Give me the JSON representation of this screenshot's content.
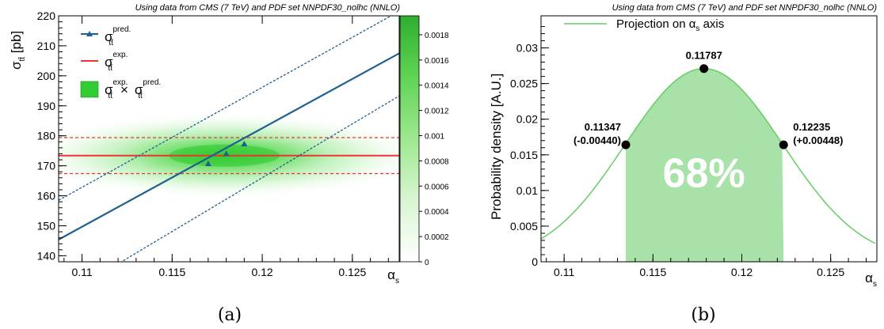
{
  "chart_data": [
    {
      "type": "heatmap",
      "title": "Using data from CMS (7 TeV) and PDF set NNPDF30_nolhc (NNLO)",
      "xlabel": "α_s",
      "ylabel": "σ_tt̄ [pb]",
      "xlim": [
        0.1087,
        0.1276
      ],
      "ylim": [
        138,
        220
      ],
      "xticks": [
        "0.11",
        "0.115",
        "0.12",
        "0.125"
      ],
      "yticks": [
        "140",
        "150",
        "160",
        "170",
        "180",
        "190",
        "200",
        "210",
        "220"
      ],
      "zticks": [
        "0",
        "0.0002",
        "0.0004",
        "0.0006",
        "0.0008",
        "0.001",
        "0.0012",
        "0.0014",
        "0.0016",
        "0.0018"
      ],
      "zlim": [
        0,
        0.00195
      ],
      "prediction": {
        "line": [
          [
            0.1087,
            145.4
          ],
          [
            0.1276,
            207.5
          ]
        ],
        "upper_band": [
          [
            0.1087,
            158.5
          ],
          [
            0.1276,
            221.5
          ]
        ],
        "lower_band": [
          [
            0.1087,
            125.5
          ],
          [
            0.1276,
            193.3
          ]
        ],
        "markers": [
          [
            0.117,
            170.7
          ],
          [
            0.118,
            174.0
          ],
          [
            0.119,
            177.3
          ]
        ]
      },
      "measurement": {
        "central": 173.4,
        "up": 179.4,
        "down": 167.4
      },
      "heatmap_peak": {
        "alpha_s": 0.1179,
        "sigma": 173.4,
        "value": 0.00195
      },
      "legend": {
        "pred": {
          "main": "σ",
          "sub": "tt̄",
          "sup": "pred."
        },
        "exp": {
          "main": "σ",
          "sub": "tt̄",
          "sup": "exp."
        },
        "prod": {
          "a": "σ",
          "a_sub": "tt̄",
          "a_sup": "exp.",
          "op": "×",
          "b": "σ",
          "b_sub": "tt̄",
          "b_sup": "pred."
        }
      },
      "caption": "(a)"
    },
    {
      "type": "area",
      "title": "Using data from CMS (7 TeV) and PDF set NNPDF30_nolhc (NNLO)",
      "xlabel": "α_s",
      "ylabel": "Probability density [A.U.]",
      "xlim": [
        0.1087,
        0.1276
      ],
      "ylim": [
        0,
        0.0345
      ],
      "xticks": [
        "0.11",
        "0.115",
        "0.12",
        "0.125"
      ],
      "yticks": [
        "0",
        "0.005",
        "0.01",
        "0.015",
        "0.02",
        "0.025",
        "0.03"
      ],
      "legend": "Projection on α_s axis",
      "gaussian": {
        "mean": 0.11787,
        "sigma": 0.00444,
        "peak": 0.0271
      },
      "points": [
        {
          "x": 0.11347,
          "y": 0.0164,
          "label": "0.11347",
          "sublabel": "(-0.00440)"
        },
        {
          "x": 0.11787,
          "y": 0.0271,
          "label": "0.11787"
        },
        {
          "x": 0.12235,
          "y": 0.0164,
          "label": "0.12235",
          "sublabel": "(+0.00448)"
        }
      ],
      "band_label": "68%",
      "caption": "(b)"
    }
  ],
  "colors": {
    "pred_line": "#1f5f8f",
    "meas_line": "#ee3333",
    "heat": "#33cc33",
    "curve": "#66cc66",
    "band": "#99dd99"
  }
}
